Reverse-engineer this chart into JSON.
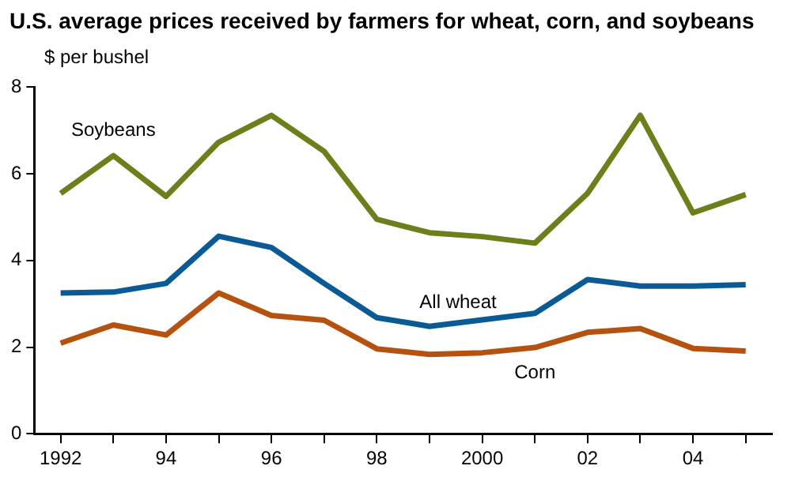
{
  "chart_data": {
    "type": "line",
    "title": "U.S. average prices received by farmers for wheat, corn, and soybeans",
    "ylabel": "$ per bushel",
    "categories": [
      "1992",
      null,
      "94",
      null,
      "96",
      null,
      "98",
      null,
      "2000",
      null,
      "02",
      null,
      "04",
      null
    ],
    "series": [
      {
        "name": "Soybeans",
        "color": "#6b7f1a",
        "values": [
          5.55,
          6.42,
          5.48,
          6.73,
          7.35,
          6.52,
          4.95,
          4.64,
          4.55,
          4.4,
          5.55,
          7.35,
          5.1,
          5.52
        ]
      },
      {
        "name": "All wheat",
        "color": "#0a5a96",
        "values": [
          3.25,
          3.27,
          3.47,
          4.56,
          4.3,
          3.47,
          2.68,
          2.48,
          2.63,
          2.78,
          3.56,
          3.41,
          3.41,
          3.44
        ]
      },
      {
        "name": "Corn",
        "color": "#b5520f",
        "values": [
          2.09,
          2.51,
          2.28,
          3.25,
          2.73,
          2.62,
          1.96,
          1.83,
          1.87,
          1.99,
          2.34,
          2.43,
          1.97,
          1.91
        ]
      }
    ],
    "ylim": [
      0,
      8
    ],
    "yticks": [
      0,
      2,
      4,
      6,
      8
    ],
    "grid": false,
    "legend": false,
    "marker": "none",
    "line_style": "solid"
  }
}
